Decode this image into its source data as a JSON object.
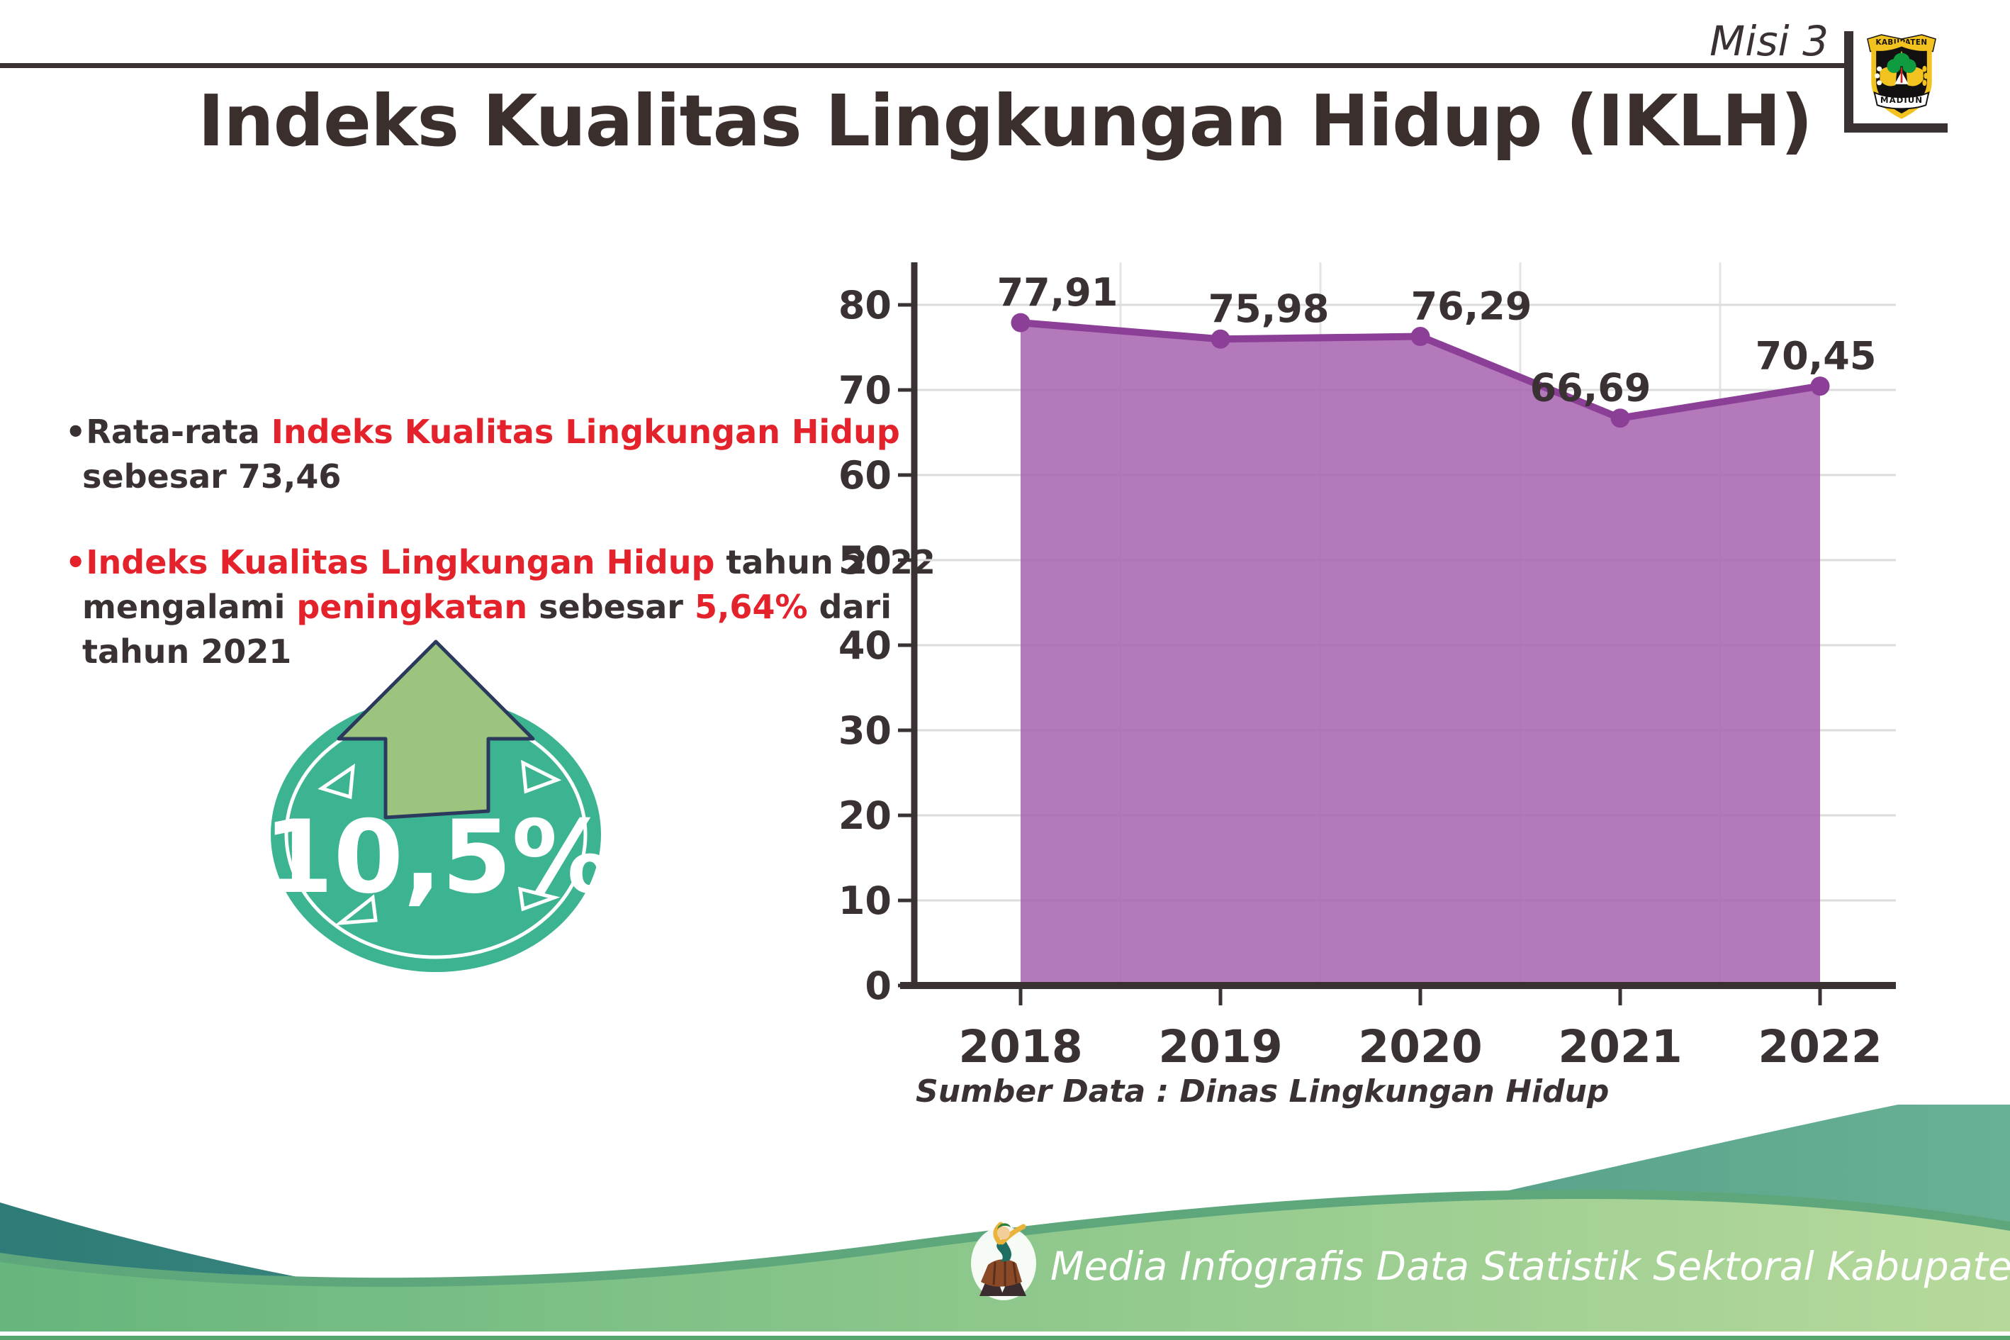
{
  "header": {
    "mission": "Misi 3",
    "logo": {
      "top": "KABUPATEN",
      "bottom": "MADIUN"
    }
  },
  "title": "Indeks Kualitas Lingkungan Hidup (IKLH)",
  "bullets": [
    {
      "lines": [
        [
          {
            "t": "•Rata-rata ",
            "c": "dark"
          },
          {
            "t": "Indeks Kualitas Lingkungan Hidup",
            "c": "red"
          }
        ],
        [
          {
            "t": "sebesar 73,46",
            "c": "dark"
          }
        ]
      ]
    },
    {
      "lines": [
        [
          {
            "t": "•Indeks Kualitas Lingkungan Hidup",
            "c": "red"
          },
          {
            "t": " tahun 2022",
            "c": "dark"
          }
        ],
        [
          {
            "t": "mengalami ",
            "c": "dark"
          },
          {
            "t": "peningkatan",
            "c": "red"
          },
          {
            "t": " sebesar ",
            "c": "dark"
          },
          {
            "t": "5,64%",
            "c": "red"
          },
          {
            "t": " dari",
            "c": "dark"
          }
        ],
        [
          {
            "t": "tahun 2021",
            "c": "dark"
          }
        ]
      ]
    }
  ],
  "badge": {
    "value": "10,5%"
  },
  "chart_data": {
    "type": "area",
    "title": "",
    "categories": [
      "2018",
      "2019",
      "2020",
      "2021",
      "2022"
    ],
    "values": [
      77.91,
      75.98,
      76.29,
      66.69,
      70.45
    ],
    "point_labels": [
      "77,91",
      "75,98",
      "76,29",
      "66,69",
      "70,45"
    ],
    "yticks": [
      0,
      10,
      20,
      30,
      40,
      50,
      60,
      70,
      80
    ],
    "ylim": [
      0,
      85
    ],
    "grid": true,
    "legend": "none",
    "source": "Sumber Data : Dinas Lingkungan Hidup",
    "colors": {
      "area": "#a866b1",
      "line": "#8c3f97"
    }
  },
  "footer": {
    "credit": "Media Infografis Data Statistik Sektoral Kabupaten Madiun |"
  },
  "colors": {
    "dark": "#3a3133",
    "red": "#e3222b",
    "badge_teal": "#3cb492",
    "arrow_green": "#9cc47e",
    "arrow_outline": "#2b3a5c",
    "grid": "#dcdcdc",
    "wave_teal_dark": "#2e7b77",
    "wave_teal_light": "#68b194",
    "wave_green_dark": "#66b67d",
    "wave_green_light": "#b6d99b",
    "wave_shadow": "#5ea77c",
    "bottom_strip_green": "#55a56d",
    "logo_yellow": "#f2c21e"
  }
}
